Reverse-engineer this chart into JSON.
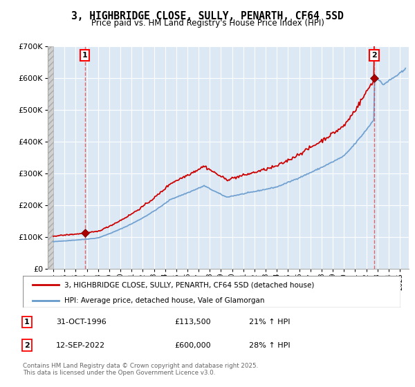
{
  "title": "3, HIGHBRIDGE CLOSE, SULLY, PENARTH, CF64 5SD",
  "subtitle": "Price paid vs. HM Land Registry's House Price Index (HPI)",
  "legend_line1": "3, HIGHBRIDGE CLOSE, SULLY, PENARTH, CF64 5SD (detached house)",
  "legend_line2": "HPI: Average price, detached house, Vale of Glamorgan",
  "sale1_label": "1",
  "sale1_date": "31-OCT-1996",
  "sale1_price": "£113,500",
  "sale1_hpi": "21% ↑ HPI",
  "sale2_label": "2",
  "sale2_date": "12-SEP-2022",
  "sale2_price": "£600,000",
  "sale2_hpi": "28% ↑ HPI",
  "footnote": "Contains HM Land Registry data © Crown copyright and database right 2025.\nThis data is licensed under the Open Government Licence v3.0.",
  "sale1_year": 1996.83,
  "sale1_value": 113500,
  "sale2_year": 2022.7,
  "sale2_value": 600000,
  "hpi_line_color": "#6699cc",
  "price_line_color": "#cc0000",
  "sale_dot_color": "#aa0000",
  "vline_color": "#dd4444",
  "plot_bg_color": "#dce9f5",
  "hatch_color": "#c8c8c8",
  "ylim_max": 700000,
  "xlim_min": 1993.5,
  "xlim_max": 2025.8
}
